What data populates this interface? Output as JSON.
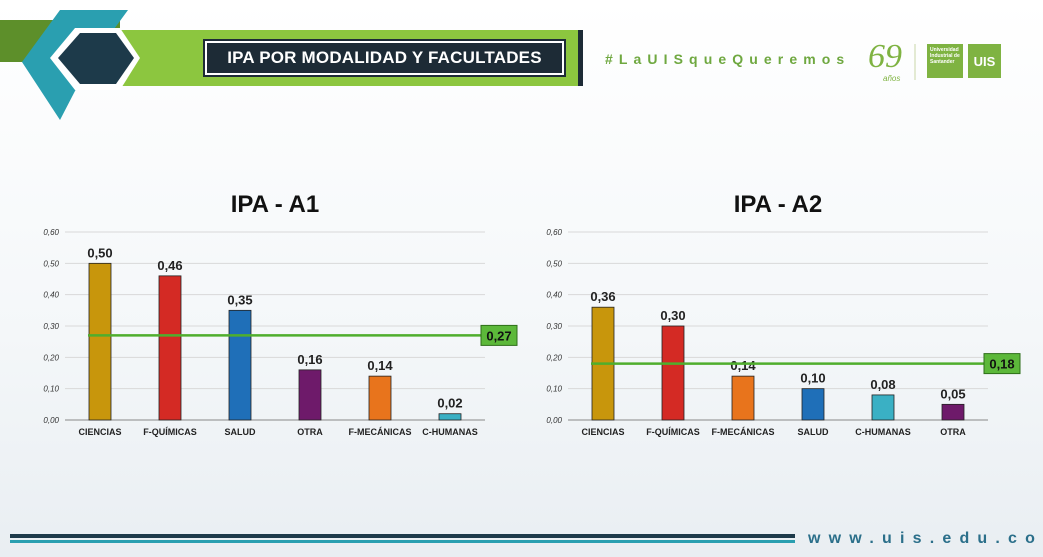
{
  "header": {
    "title": "IPA POR MODALIDAD Y FACULTADES",
    "hashtag": "#LaUISqueQueremos",
    "anniversary_number": "69",
    "anniversary_word": "años",
    "university_name": "Universidad Industrial de Santander",
    "logo_text": "UIS"
  },
  "footer": {
    "website": "www.uis.edu.co"
  },
  "colors": {
    "green_accent": "#7fb342",
    "dark_navy": "#1d2b36",
    "teal": "#2a9fb0",
    "average_line": "#4fae2d"
  },
  "chart_data": [
    {
      "type": "bar",
      "title": "IPA - A1",
      "categories": [
        "CIENCIAS",
        "F-QUÍMICAS",
        "SALUD",
        "OTRA",
        "F-MECÁNICAS",
        "C-HUMANAS"
      ],
      "values": [
        0.5,
        0.46,
        0.35,
        0.16,
        0.14,
        0.02
      ],
      "value_labels": [
        "0,50",
        "0,46",
        "0,35",
        "0,16",
        "0,14",
        "0,02"
      ],
      "bar_colors": [
        "#c8960c",
        "#d42a24",
        "#1f6fb8",
        "#6e1a6a",
        "#e8741c",
        "#3ab0c4"
      ],
      "reference_line": {
        "value": 0.27,
        "label": "0,27"
      },
      "ylim": [
        0,
        0.6
      ],
      "yticks": [
        0.0,
        0.1,
        0.2,
        0.3,
        0.4,
        0.5,
        0.6
      ],
      "ytick_labels": [
        "0,00",
        "0,10",
        "0,20",
        "0,30",
        "0,40",
        "0,50",
        "0,60"
      ],
      "grid": true,
      "xlabel": "",
      "ylabel": ""
    },
    {
      "type": "bar",
      "title": "IPA - A2",
      "categories": [
        "CIENCIAS",
        "F-QUÍMICAS",
        "F-MECÁNICAS",
        "SALUD",
        "C-HUMANAS",
        "OTRA"
      ],
      "values": [
        0.36,
        0.3,
        0.14,
        0.1,
        0.08,
        0.05
      ],
      "value_labels": [
        "0,36",
        "0,30",
        "0,14",
        "0,10",
        "0,08",
        "0,05"
      ],
      "bar_colors": [
        "#c8960c",
        "#d42a24",
        "#e8741c",
        "#1f6fb8",
        "#3ab0c4",
        "#6e1a6a"
      ],
      "reference_line": {
        "value": 0.18,
        "label": "0,18"
      },
      "ylim": [
        0,
        0.6
      ],
      "yticks": [
        0.0,
        0.1,
        0.2,
        0.3,
        0.4,
        0.5,
        0.6
      ],
      "ytick_labels": [
        "0,00",
        "0,10",
        "0,20",
        "0,30",
        "0,40",
        "0,50",
        "0,60"
      ],
      "grid": true,
      "xlabel": "",
      "ylabel": ""
    }
  ]
}
